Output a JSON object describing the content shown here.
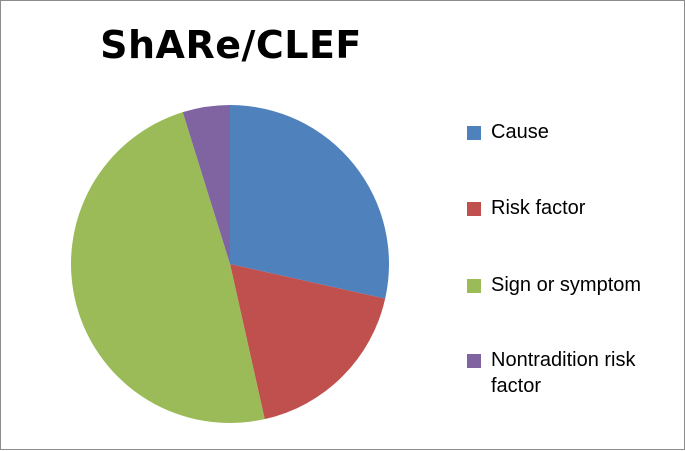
{
  "chart_data": {
    "type": "pie",
    "title": "ShARe/CLEF",
    "categories": [
      "Cause",
      "Risk factor",
      "Sign or symptom",
      "Nontradition risk factor"
    ],
    "values": [
      28.5,
      18.0,
      48.7,
      4.8
    ],
    "colors": [
      "#4F81BD",
      "#C0504D",
      "#9BBB59",
      "#8064A2"
    ],
    "legend_position": "right"
  }
}
